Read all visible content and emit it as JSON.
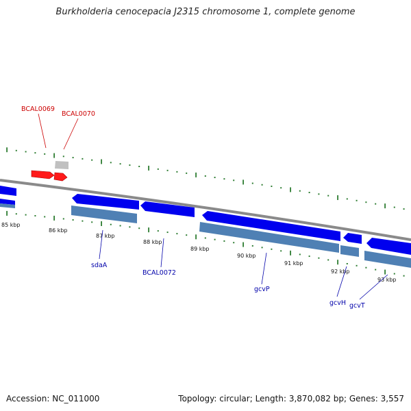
{
  "title": "Burkholderia cenocepacia J2315 chromosome 1, complete genome",
  "footer": {
    "accession_label": "Accession:",
    "accession": "NC_011000",
    "topology_label": "Topology:",
    "topology": "circular",
    "length_label": "Length:",
    "length": "3,870,082 bp",
    "genes_label": "Genes:",
    "genes": "3,557"
  },
  "colors": {
    "forward_feature": "#ff0000",
    "reverse_feature": "#0000ee",
    "gene_shadow": "#4f80b4",
    "backbone": "#808080",
    "ticks": "#2e7d32",
    "label_forward": "#cc0000",
    "label_reverse": "#0000aa"
  },
  "scale_labels": [
    "85 kbp",
    "86 kbp",
    "87 kbp",
    "88 kbp",
    "89 kbp",
    "90 kbp",
    "91 kbp",
    "92 kbp",
    "93 kbp"
  ],
  "genes": [
    {
      "name": "BCAL0069",
      "strand": "forward"
    },
    {
      "name": "BCAL0070",
      "strand": "forward"
    },
    {
      "name": "sdaA",
      "strand": "reverse"
    },
    {
      "name": "BCAL0072",
      "strand": "reverse"
    },
    {
      "name": "gcvP",
      "strand": "reverse"
    },
    {
      "name": "gcvH",
      "strand": "reverse"
    },
    {
      "name": "gcvT",
      "strand": "reverse"
    }
  ]
}
